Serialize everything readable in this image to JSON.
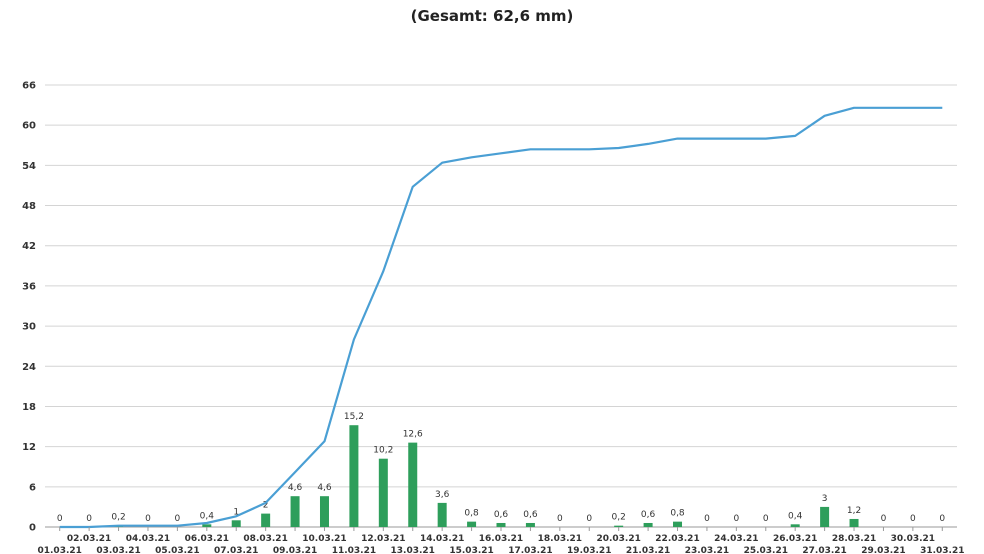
{
  "chart_data": {
    "type": "bar+line",
    "title": "",
    "subtitle": "(Gesamt: 62,6 mm)",
    "xlabel": "",
    "ylabel": "",
    "ylim": [
      0,
      66
    ],
    "yticks": [
      0,
      6,
      12,
      18,
      24,
      30,
      36,
      42,
      48,
      54,
      60,
      66
    ],
    "grid": true,
    "categories": [
      "01.03.21",
      "02.03.21",
      "03.03.21",
      "04.03.21",
      "05.03.21",
      "06.03.21",
      "07.03.21",
      "08.03.21",
      "09.03.21",
      "10.03.21",
      "11.03.21",
      "12.03.21",
      "13.03.21",
      "14.03.21",
      "15.03.21",
      "16.03.21",
      "17.03.21",
      "18.03.21",
      "19.03.21",
      "20.03.21",
      "21.03.21",
      "22.03.21",
      "23.03.21",
      "24.03.21",
      "25.03.21",
      "26.03.21",
      "27.03.21",
      "28.03.21",
      "29.03.21",
      "30.03.21",
      "31.03.21"
    ],
    "series": [
      {
        "type": "bar",
        "color": "#2e9e5b",
        "values": [
          0,
          0,
          0.2,
          0,
          0,
          0.4,
          1,
          2,
          4.6,
          4.6,
          15.2,
          10.2,
          12.6,
          3.6,
          0.8,
          0.6,
          0.6,
          0,
          0,
          0.2,
          0.6,
          0.8,
          0,
          0,
          0,
          0.4,
          3,
          1.2,
          0,
          0,
          0
        ],
        "labels": [
          "0",
          "0",
          "0,2",
          "0",
          "0",
          "0,4",
          "1",
          "2",
          "4,6",
          "4,6",
          "15,2",
          "10,2",
          "12,6",
          "3,6",
          "0,8",
          "0,6",
          "0,6",
          "0",
          "0",
          "0,2",
          "0,6",
          "0,8",
          "0",
          "0",
          "0",
          "0,4",
          "3",
          "1,2",
          "0",
          "0",
          "0"
        ]
      },
      {
        "type": "line",
        "color": "#4a9fd4",
        "values": [
          0,
          0,
          0.2,
          0.2,
          0.2,
          0.6,
          1.6,
          3.6,
          8.2,
          12.8,
          28,
          38.2,
          50.8,
          54.4,
          55.2,
          55.8,
          56.4,
          56.4,
          56.4,
          56.6,
          57.2,
          58,
          58,
          58,
          58,
          58.4,
          61.4,
          62.6,
          62.6,
          62.6,
          62.6
        ]
      }
    ]
  }
}
